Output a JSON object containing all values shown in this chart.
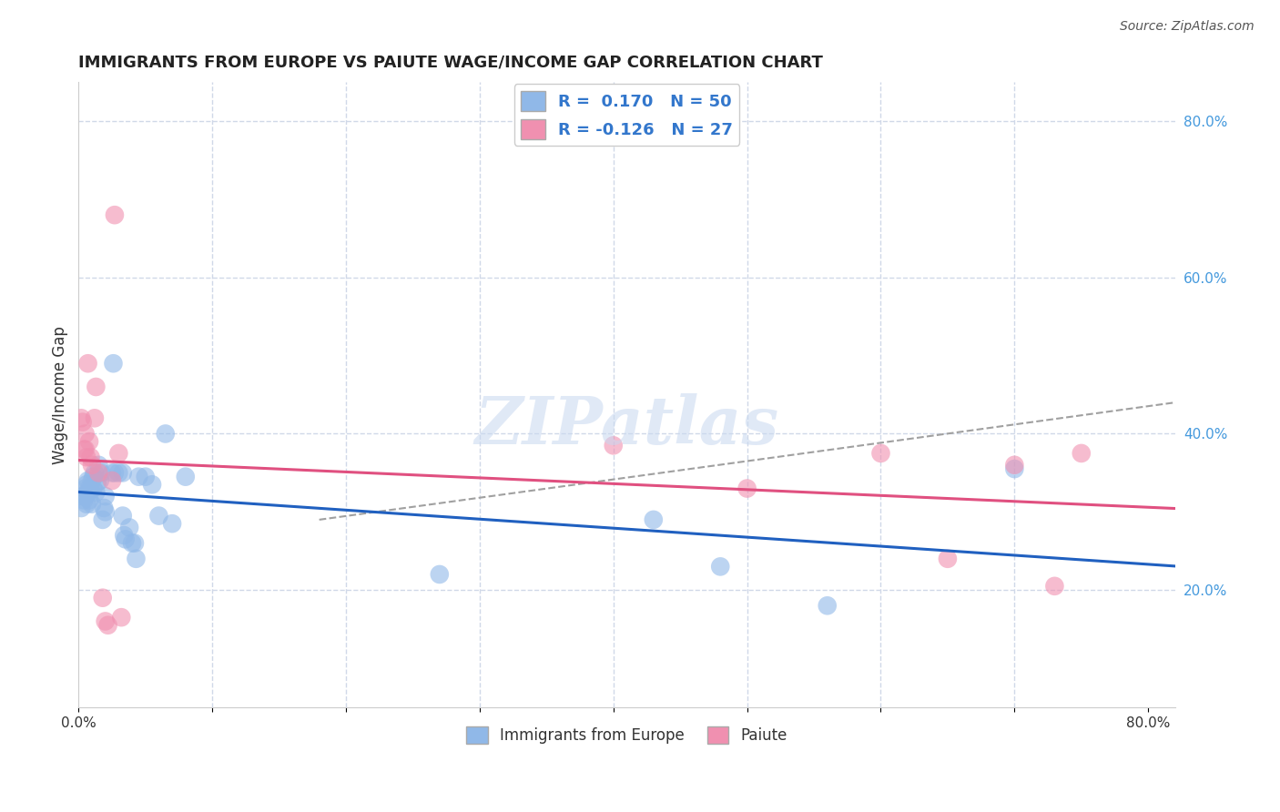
{
  "title": "IMMIGRANTS FROM EUROPE VS PAIUTE WAGE/INCOME GAP CORRELATION CHART",
  "source": "Source: ZipAtlas.com",
  "ylabel": "Wage/Income Gap",
  "right_yticks": [
    "20.0%",
    "40.0%",
    "60.0%",
    "80.0%"
  ],
  "right_ytick_vals": [
    0.2,
    0.4,
    0.6,
    0.8
  ],
  "legend_r1": "R =  0.170   N = 50",
  "legend_r2": "R = -0.126   N = 27",
  "watermark": "ZIPatlas",
  "blue_scatter": [
    [
      0.002,
      0.305
    ],
    [
      0.003,
      0.32
    ],
    [
      0.004,
      0.315
    ],
    [
      0.005,
      0.33
    ],
    [
      0.005,
      0.32
    ],
    [
      0.006,
      0.335
    ],
    [
      0.006,
      0.31
    ],
    [
      0.007,
      0.34
    ],
    [
      0.007,
      0.325
    ],
    [
      0.008,
      0.33
    ],
    [
      0.008,
      0.315
    ],
    [
      0.009,
      0.328
    ],
    [
      0.01,
      0.34
    ],
    [
      0.01,
      0.31
    ],
    [
      0.011,
      0.345
    ],
    [
      0.011,
      0.33
    ],
    [
      0.012,
      0.35
    ],
    [
      0.013,
      0.325
    ],
    [
      0.014,
      0.338
    ],
    [
      0.015,
      0.36
    ],
    [
      0.016,
      0.34
    ],
    [
      0.017,
      0.35
    ],
    [
      0.018,
      0.29
    ],
    [
      0.019,
      0.305
    ],
    [
      0.02,
      0.32
    ],
    [
      0.02,
      0.3
    ],
    [
      0.025,
      0.35
    ],
    [
      0.026,
      0.49
    ],
    [
      0.027,
      0.35
    ],
    [
      0.03,
      0.35
    ],
    [
      0.033,
      0.35
    ],
    [
      0.033,
      0.295
    ],
    [
      0.034,
      0.27
    ],
    [
      0.035,
      0.265
    ],
    [
      0.038,
      0.28
    ],
    [
      0.04,
      0.26
    ],
    [
      0.042,
      0.26
    ],
    [
      0.043,
      0.24
    ],
    [
      0.045,
      0.345
    ],
    [
      0.05,
      0.345
    ],
    [
      0.055,
      0.335
    ],
    [
      0.06,
      0.295
    ],
    [
      0.065,
      0.4
    ],
    [
      0.07,
      0.285
    ],
    [
      0.08,
      0.345
    ],
    [
      0.27,
      0.22
    ],
    [
      0.43,
      0.29
    ],
    [
      0.48,
      0.23
    ],
    [
      0.56,
      0.18
    ],
    [
      0.7,
      0.355
    ]
  ],
  "pink_scatter": [
    [
      0.002,
      0.42
    ],
    [
      0.003,
      0.415
    ],
    [
      0.004,
      0.38
    ],
    [
      0.005,
      0.4
    ],
    [
      0.005,
      0.38
    ],
    [
      0.006,
      0.37
    ],
    [
      0.007,
      0.49
    ],
    [
      0.008,
      0.39
    ],
    [
      0.009,
      0.37
    ],
    [
      0.01,
      0.36
    ],
    [
      0.012,
      0.42
    ],
    [
      0.013,
      0.46
    ],
    [
      0.015,
      0.35
    ],
    [
      0.018,
      0.19
    ],
    [
      0.02,
      0.16
    ],
    [
      0.022,
      0.155
    ],
    [
      0.025,
      0.34
    ],
    [
      0.027,
      0.68
    ],
    [
      0.03,
      0.375
    ],
    [
      0.032,
      0.165
    ],
    [
      0.4,
      0.385
    ],
    [
      0.5,
      0.33
    ],
    [
      0.6,
      0.375
    ],
    [
      0.65,
      0.24
    ],
    [
      0.7,
      0.36
    ],
    [
      0.73,
      0.205
    ],
    [
      0.75,
      0.375
    ]
  ],
  "blue_line_color": "#2060c0",
  "pink_line_color": "#e05080",
  "dashed_line_color": "#a0a0a0",
  "blue_scatter_color": "#90b8e8",
  "pink_scatter_color": "#f090b0",
  "bg_color": "#ffffff",
  "grid_color": "#d0d8e8",
  "xlim": [
    0.0,
    0.82
  ],
  "ylim": [
    0.05,
    0.85
  ]
}
